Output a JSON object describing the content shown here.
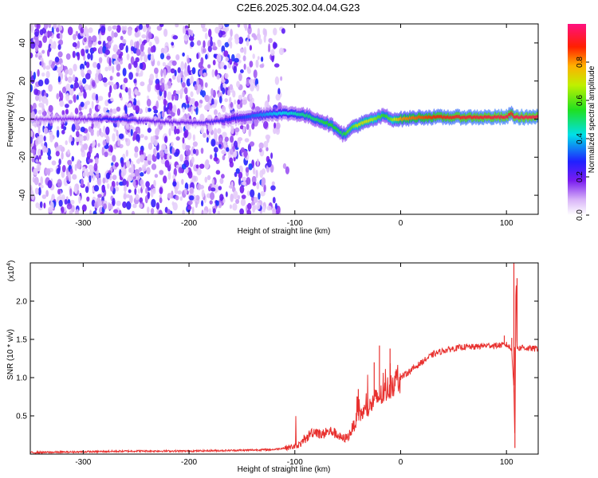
{
  "figure_title": "C2E6.2025.302.04.04.G23",
  "chart_data": [
    {
      "type": "heatmap",
      "title": "C2E6.2025.302.04.04.G23",
      "xlabel": "Height of straight line (km)",
      "ylabel": "Frequency (Hz)",
      "xlim": [
        -350,
        130
      ],
      "ylim": [
        -50,
        50
      ],
      "xticks": [
        -300,
        -200,
        -100,
        0,
        100
      ],
      "xtick_labels": [
        "-300",
        "-200",
        "-100",
        "0",
        "100"
      ],
      "yticks": [
        -40,
        -20,
        0,
        20,
        40
      ],
      "ytick_labels": [
        "-40",
        "-20",
        "0",
        "20",
        "40"
      ],
      "colorbar": {
        "label": "Normalized spectral amplitude",
        "range": [
          0,
          1
        ],
        "ticks": [
          0.0,
          0.2,
          0.4,
          0.6,
          0.8
        ],
        "tick_labels": [
          "0.0",
          "0.2",
          "0.4",
          "0.6",
          "0.8"
        ]
      },
      "ridge": {
        "description_x_km": [
          -350,
          -300,
          -270,
          -240,
          -200,
          -170,
          -150,
          -120,
          -100,
          -90,
          -80,
          -70,
          -60,
          -55,
          -50,
          -45,
          -40,
          -30,
          -25,
          -20,
          -15,
          -10,
          -5,
          0,
          20,
          40,
          60,
          80,
          100,
          105,
          108,
          112,
          130
        ],
        "center_freq_hz": [
          0,
          0,
          0,
          -1,
          -2,
          -1,
          1,
          3,
          3,
          2,
          0,
          -2,
          -5,
          -8,
          -7,
          -4,
          -3,
          -1,
          0,
          1,
          2,
          0,
          0,
          0,
          1,
          1,
          1,
          1,
          1,
          3,
          1,
          1,
          1
        ],
        "amplitude": [
          0.15,
          0.18,
          0.3,
          0.2,
          0.2,
          0.25,
          0.3,
          0.4,
          0.45,
          0.5,
          0.5,
          0.55,
          0.55,
          0.5,
          0.6,
          0.6,
          0.7,
          0.7,
          0.65,
          0.6,
          0.55,
          0.6,
          0.7,
          0.8,
          0.85,
          0.9,
          0.92,
          0.93,
          0.95,
          0.9,
          0.95,
          0.95,
          0.95
        ]
      }
    },
    {
      "type": "line",
      "xlabel": "Height of straight line (km)",
      "ylabel": "SNR (10 * v/v)",
      "y_multiplier_label": "(x10",
      "y_multiplier_exp": "4",
      "xlim": [
        -350,
        130
      ],
      "ylim": [
        0.0,
        2.5
      ],
      "xticks": [
        -300,
        -200,
        -100,
        0,
        100
      ],
      "xtick_labels": [
        "-300",
        "-200",
        "-100",
        "0",
        "100"
      ],
      "yticks": [
        0.5,
        1.0,
        1.5,
        2.0
      ],
      "ytick_labels": [
        "0.5",
        "1.0",
        "1.5",
        "2.0"
      ],
      "color": "#e8302e",
      "series": [
        {
          "name": "SNR",
          "x": [
            -350,
            -300,
            -250,
            -200,
            -150,
            -120,
            -110,
            -100,
            -95,
            -90,
            -85,
            -80,
            -75,
            -70,
            -65,
            -60,
            -55,
            -50,
            -45,
            -40,
            -35,
            -30,
            -25,
            -20,
            -15,
            -10,
            -5,
            0,
            10,
            20,
            30,
            40,
            50,
            60,
            70,
            80,
            90,
            100,
            103,
            105,
            107,
            108,
            109,
            110,
            112,
            115,
            120,
            130
          ],
          "y": [
            0.02,
            0.03,
            0.04,
            0.04,
            0.05,
            0.06,
            0.08,
            0.1,
            0.13,
            0.18,
            0.28,
            0.3,
            0.25,
            0.28,
            0.3,
            0.25,
            0.2,
            0.22,
            0.35,
            0.5,
            0.55,
            0.6,
            0.7,
            0.75,
            0.8,
            0.9,
            0.95,
            1.0,
            1.1,
            1.2,
            1.3,
            1.35,
            1.38,
            1.4,
            1.4,
            1.42,
            1.42,
            1.43,
            1.4,
            1.35,
            0.9,
            0.1,
            2.4,
            1.4,
            1.38,
            1.4,
            1.38,
            1.38
          ],
          "spikes": [
            {
              "x": -40,
              "y": 0.85
            },
            {
              "x": -20,
              "y": 1.42
            },
            {
              "x": -25,
              "y": 1.2
            },
            {
              "x": -10,
              "y": 1.38
            },
            {
              "x": 98,
              "y": 1.55
            },
            {
              "x": 105,
              "y": 1.52
            },
            {
              "x": 107,
              "y": 2.5
            },
            {
              "x": 110,
              "y": 2.3
            }
          ]
        }
      ]
    }
  ]
}
